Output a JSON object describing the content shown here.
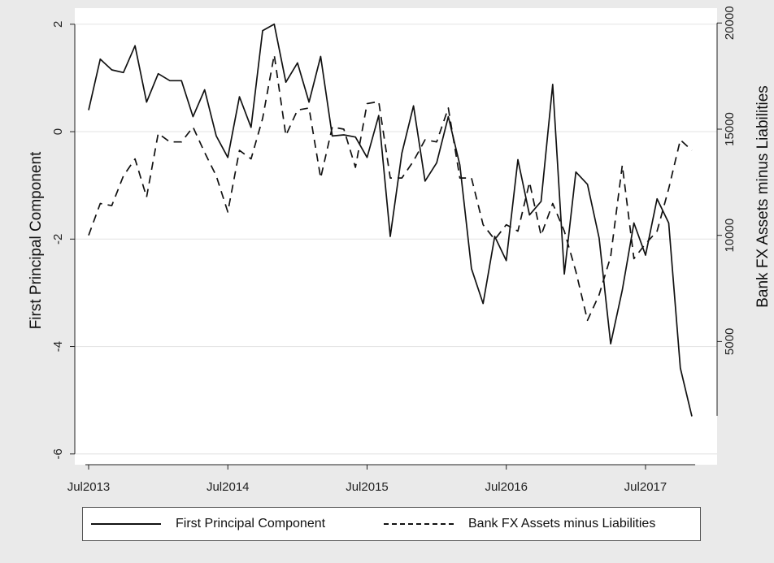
{
  "chart_data": {
    "type": "line",
    "x_tick_labels": [
      "Jul2013",
      "Jul2014",
      "Jul2015",
      "Jul2016",
      "Jul2017"
    ],
    "left_axis": {
      "label": "First Principal Component",
      "ylim": [
        -6.2,
        2.3
      ],
      "ticks": [
        2,
        0,
        -2,
        -4,
        -6
      ],
      "tick_labels": [
        "2",
        "0",
        "-2",
        "-4",
        "-6"
      ]
    },
    "right_axis": {
      "label": "Bank FX Assets minus Liabilities",
      "ylim": [
        -800,
        20700
      ],
      "ticks": [
        20000,
        15000,
        10000,
        5000
      ],
      "tick_labels": [
        "20000",
        "15000",
        "10000",
        "5000"
      ]
    },
    "grid": true,
    "legend_position": "bottom",
    "x_start": "2013-07",
    "series": [
      {
        "name": "First Principal Component",
        "axis": "left",
        "style": "solid",
        "values": [
          0.4,
          1.35,
          1.15,
          1.1,
          1.6,
          0.55,
          1.08,
          0.95,
          0.95,
          0.28,
          0.78,
          -0.08,
          -0.48,
          0.65,
          0.08,
          1.88,
          2.0,
          0.92,
          1.28,
          0.55,
          1.4,
          -0.08,
          -0.06,
          -0.1,
          -0.48,
          0.3,
          -1.95,
          -0.4,
          0.48,
          -0.92,
          -0.58,
          0.28,
          -0.62,
          -2.55,
          -3.2,
          -1.95,
          -2.4,
          -0.52,
          -1.55,
          -1.3,
          0.88,
          -2.65,
          -0.75,
          -0.98,
          -1.98,
          -3.95,
          -2.95,
          -1.7,
          -2.3,
          -1.25,
          -1.7,
          -4.4,
          -5.3
        ]
      },
      {
        "name": "Bank FX Assets minus Liabilities",
        "axis": "right",
        "style": "dashed",
        "values": [
          10000,
          11500,
          11400,
          12800,
          13600,
          11800,
          14800,
          14400,
          14400,
          15100,
          13900,
          12800,
          11100,
          14000,
          13600,
          15500,
          18500,
          14700,
          15900,
          16000,
          12700,
          15100,
          15000,
          13200,
          16200,
          16300,
          12700,
          12700,
          13500,
          14500,
          14400,
          16000,
          12700,
          12700,
          10500,
          9800,
          10500,
          10200,
          12500,
          10000,
          11500,
          10200,
          8300,
          6000,
          7200,
          9000,
          13300,
          8900,
          9600,
          10200,
          12200,
          14500,
          14000
        ]
      }
    ]
  }
}
